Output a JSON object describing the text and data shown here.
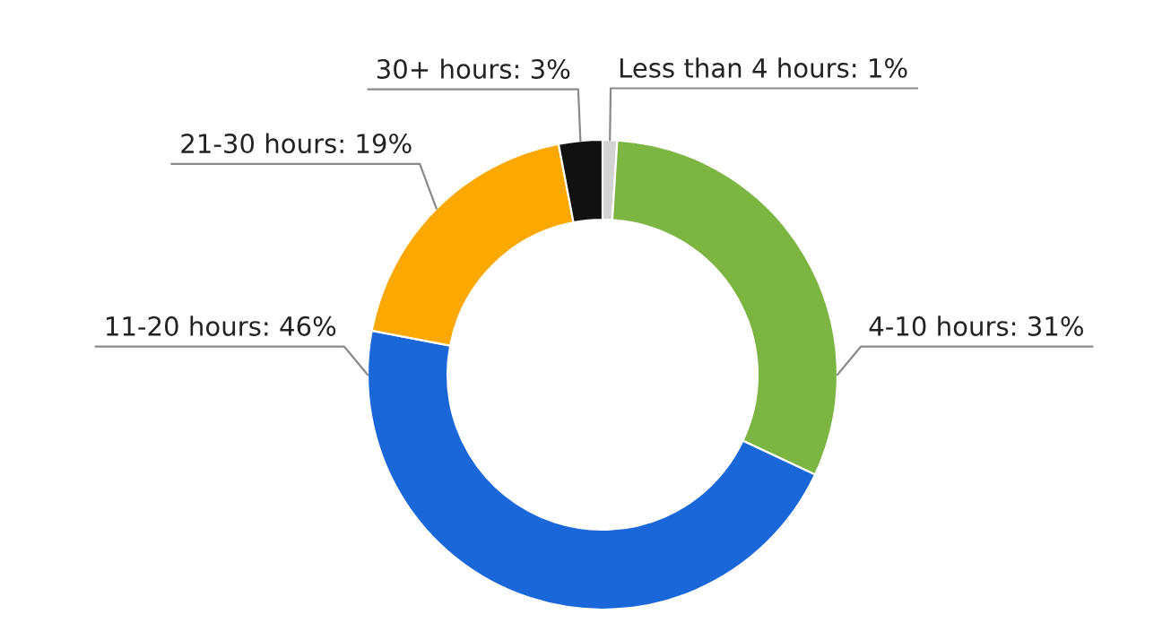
{
  "chart_data": {
    "type": "donut",
    "categories": [
      "Less than 4 hours",
      "4-10 hours",
      "11-20 hours",
      "21-30 hours",
      "30+ hours"
    ],
    "values": [
      1,
      31,
      46,
      19,
      3
    ],
    "value_labels": [
      "1%",
      "31%",
      "46%",
      "19%",
      "3%"
    ],
    "colors": [
      "#d3d3d3",
      "#7db543",
      "#1967d9",
      "#fba800",
      "#111111"
    ]
  }
}
